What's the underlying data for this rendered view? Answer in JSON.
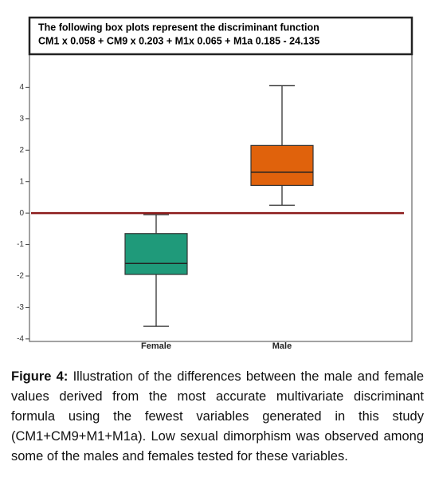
{
  "chart_data": {
    "type": "box",
    "title": "The following box plots represent the discriminant function",
    "subtitle": "CM1 x 0.058 + CM9 x 0.203 + M1x 0.065 + M1a 0.185 - 24.135",
    "categories": [
      "Female",
      "Male"
    ],
    "colors": [
      "#1f9a7a",
      "#e0620c"
    ],
    "whisker_low": [
      -3.6,
      0.25
    ],
    "q1": [
      -1.95,
      0.88
    ],
    "median": [
      -1.6,
      1.3
    ],
    "q3": [
      -0.65,
      2.15
    ],
    "whisker_high": [
      -0.05,
      4.05
    ],
    "reference_line": {
      "value": 0,
      "color": "#8b1a1a"
    },
    "ylim": [
      -4.08,
      5.05
    ],
    "yticks": [
      -4,
      -3,
      -2,
      -1,
      0,
      1,
      2,
      3,
      4
    ]
  },
  "caption": {
    "label": "Figure 4:",
    "text": "Illustration of the differences between the male and female values derived from the most accurate multivariate discriminant formula using the fewest variables generated in this study (CM1+CM9+M1+M1a). Low sexual dimorphism was observed among some of the males and females tested for these variables."
  }
}
